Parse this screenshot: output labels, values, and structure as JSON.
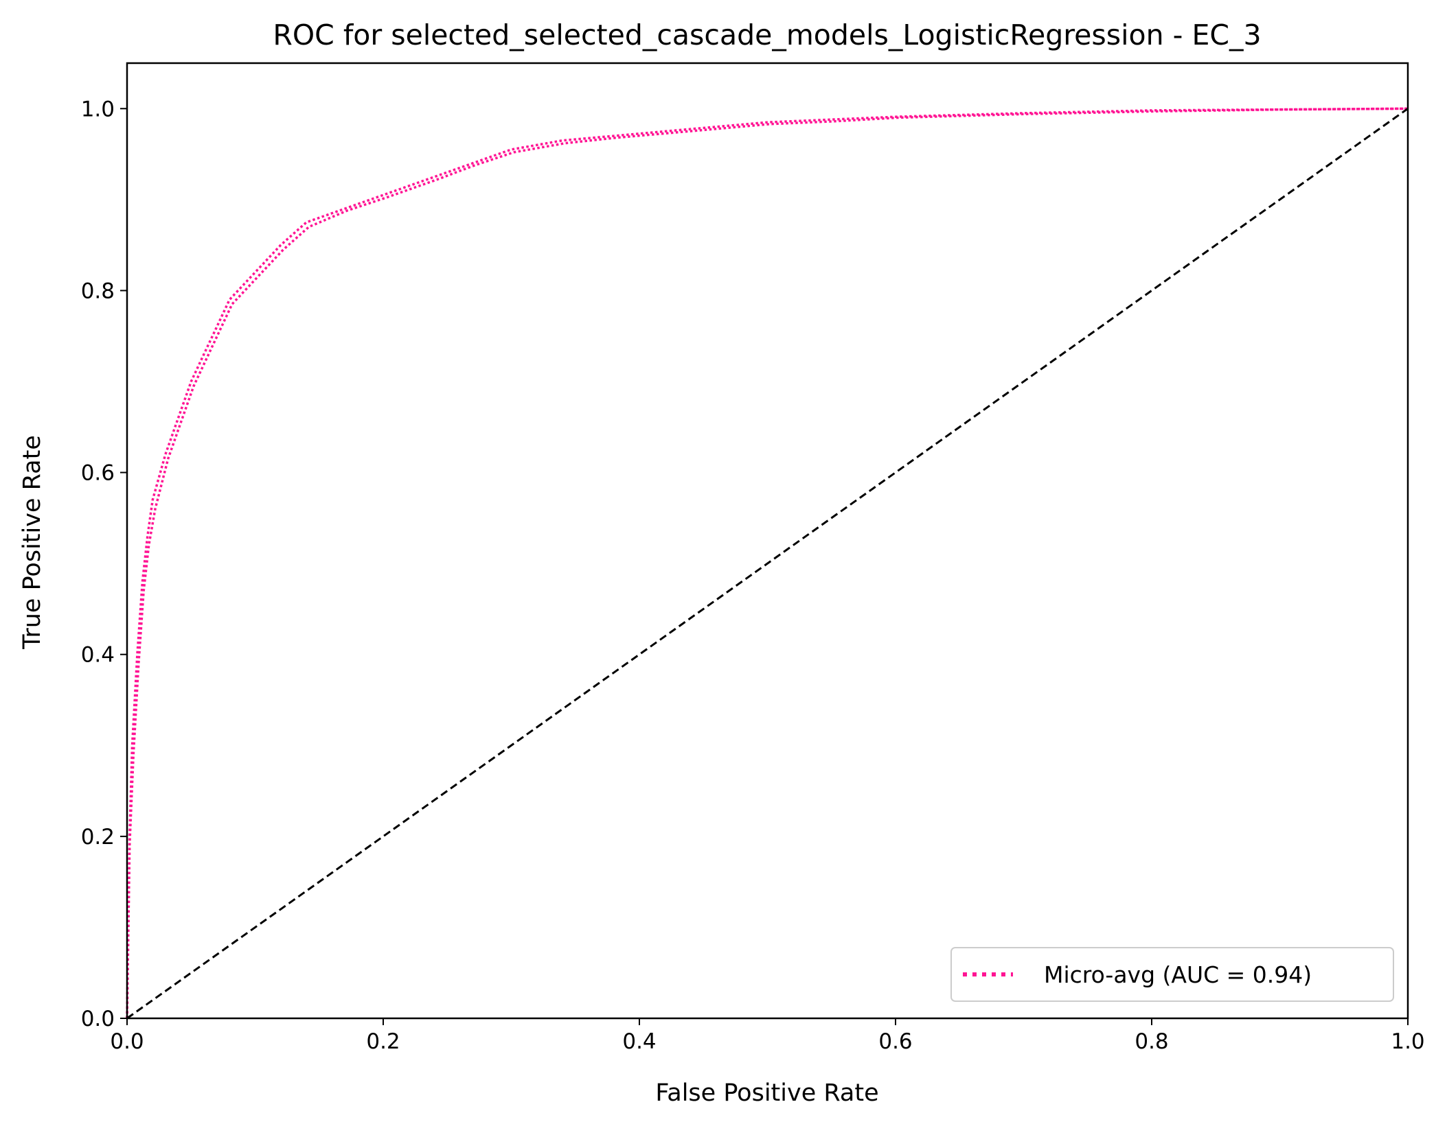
{
  "chart_data": {
    "type": "line",
    "title": "ROC for selected_selected_cascade_models_LogisticRegression - EC_3",
    "xlabel": "False Positive Rate",
    "ylabel": "True Positive Rate",
    "xlim": [
      0.0,
      1.0
    ],
    "ylim": [
      0.0,
      1.05
    ],
    "x_ticks": [
      "0.0",
      "0.2",
      "0.4",
      "0.6",
      "0.8",
      "1.0"
    ],
    "y_ticks": [
      "0.0",
      "0.2",
      "0.4",
      "0.6",
      "0.8",
      "1.0"
    ],
    "grid": false,
    "legend_position": "lower-right",
    "series": [
      {
        "name": "Micro-avg (AUC = 0.94)",
        "color": "#ff1493",
        "style": "dotted",
        "x": [
          0.0,
          0.002,
          0.004,
          0.008,
          0.012,
          0.016,
          0.02,
          0.03,
          0.04,
          0.05,
          0.06,
          0.07,
          0.08,
          0.1,
          0.12,
          0.14,
          0.17,
          0.2,
          0.24,
          0.27,
          0.3,
          0.34,
          0.38,
          0.42,
          0.46,
          0.5,
          0.55,
          0.6,
          0.7,
          0.8,
          0.9,
          1.0
        ],
        "y": [
          0.0,
          0.2,
          0.3,
          0.4,
          0.48,
          0.53,
          0.57,
          0.62,
          0.66,
          0.7,
          0.73,
          0.76,
          0.79,
          0.82,
          0.85,
          0.875,
          0.89,
          0.905,
          0.925,
          0.94,
          0.955,
          0.965,
          0.97,
          0.975,
          0.98,
          0.985,
          0.988,
          0.991,
          0.995,
          0.998,
          0.999,
          1.0
        ]
      },
      {
        "name": "",
        "color": "#ff1493",
        "style": "dotted",
        "x": [
          0.0,
          0.002,
          0.005,
          0.009,
          0.013,
          0.017,
          0.022,
          0.032,
          0.042,
          0.052,
          0.062,
          0.072,
          0.082,
          0.102,
          0.122,
          0.142,
          0.172,
          0.202,
          0.242,
          0.272,
          0.302,
          0.342,
          0.382,
          0.422,
          0.462,
          0.502,
          0.552,
          0.602,
          0.702,
          0.802,
          0.902,
          1.0
        ],
        "y": [
          0.0,
          0.19,
          0.29,
          0.39,
          0.47,
          0.52,
          0.56,
          0.615,
          0.655,
          0.695,
          0.725,
          0.755,
          0.785,
          0.815,
          0.845,
          0.87,
          0.888,
          0.902,
          0.922,
          0.938,
          0.952,
          0.962,
          0.968,
          0.973,
          0.978,
          0.983,
          0.986,
          0.99,
          0.994,
          0.997,
          0.999,
          1.0
        ]
      },
      {
        "name": "",
        "color": "#000000",
        "style": "dashed",
        "x": [
          0.0,
          1.0
        ],
        "y": [
          0.0,
          1.0
        ]
      }
    ]
  }
}
